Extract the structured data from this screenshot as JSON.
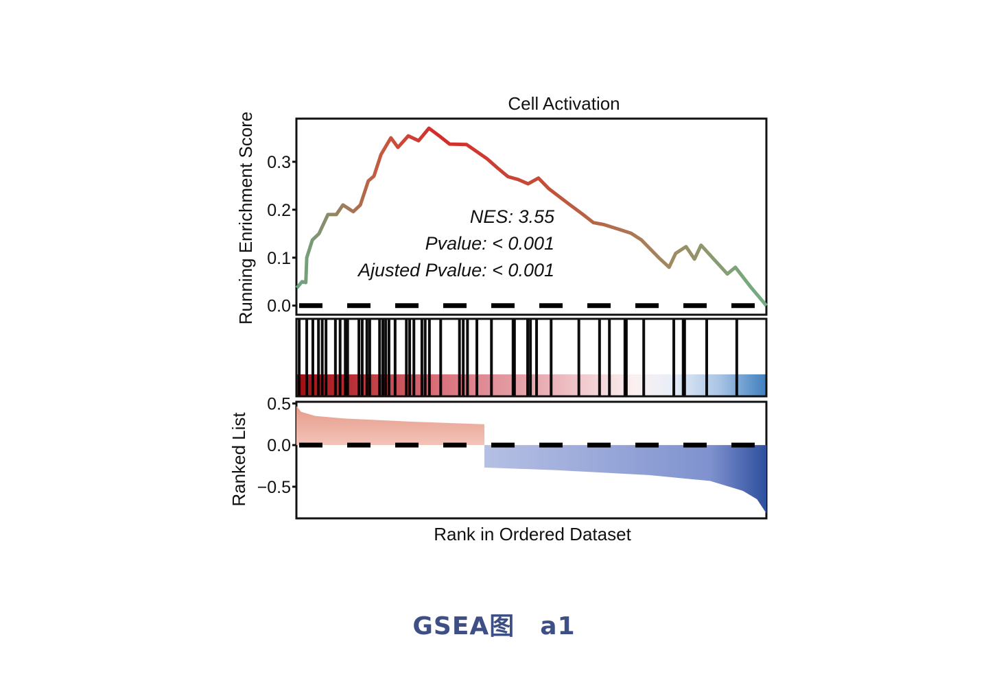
{
  "chart_data": {
    "type": "line",
    "title": "Cell Activation",
    "xlabel": "Rank in Ordered Dataset",
    "ylabel_top": "Running Enrichment Score",
    "ylabel_bottom": "Ranked List",
    "top_yticks": [
      "0.0",
      "0.1",
      "0.2",
      "0.3"
    ],
    "top_ytick_values": [
      0.0,
      0.1,
      0.2,
      0.3
    ],
    "top_ylim": [
      -0.019,
      0.39
    ],
    "bottom_yticks": [
      "0.5",
      "0.0",
      "−0.5"
    ],
    "bottom_ytick_values": [
      0.5,
      0.0,
      -0.5
    ],
    "bottom_ylim": [
      -0.88,
      0.52
    ],
    "xlim": [
      0,
      100
    ],
    "annotations": [
      "NES: 3.55",
      "Pvalue: < 0.001",
      "Ajusted Pvalue: < 0.001"
    ],
    "running_es": {
      "x": [
        0.1,
        1.2,
        2.0,
        2.2,
        3.4,
        4.8,
        6.7,
        8.5,
        9.9,
        12.1,
        13.6,
        15.3,
        16.5,
        18.0,
        20.1,
        21.6,
        23.8,
        26.0,
        28.2,
        30.4,
        32.6,
        36.2,
        37.7,
        40.6,
        42.8,
        45.0,
        47.2,
        49.3,
        51.5,
        53.7,
        58.1,
        61.0,
        63.2,
        65.4,
        68.3,
        71.2,
        73.4,
        77.1,
        79.3,
        80.7,
        82.9,
        84.7,
        86.1,
        88.8,
        91.7,
        93.4,
        96.8,
        100
      ],
      "y": [
        0.037,
        0.05,
        0.048,
        0.1,
        0.137,
        0.15,
        0.19,
        0.19,
        0.21,
        0.196,
        0.21,
        0.26,
        0.27,
        0.315,
        0.35,
        0.33,
        0.354,
        0.344,
        0.37,
        0.354,
        0.337,
        0.336,
        0.326,
        0.306,
        0.287,
        0.269,
        0.263,
        0.254,
        0.266,
        0.244,
        0.211,
        0.19,
        0.173,
        0.169,
        0.16,
        0.151,
        0.137,
        0.1,
        0.08,
        0.109,
        0.123,
        0.097,
        0.126,
        0.097,
        0.066,
        0.08,
        0.037,
        0.0
      ]
    },
    "hits": [
      0.6,
      2.2,
      3.5,
      4.7,
      5.5,
      6.3,
      8.3,
      9.3,
      10.4,
      10.9,
      13.3,
      14.0,
      15.0,
      15.6,
      17.7,
      18.4,
      19.0,
      19.7,
      21.0,
      23.4,
      24.1,
      25.0,
      26.7,
      27.4,
      28.3,
      30.7,
      34.7,
      35.5,
      36.4,
      38.4,
      41.5,
      46.1,
      46.4,
      49.2,
      49.8,
      51.1,
      54.2,
      60.1,
      64.5,
      66.6,
      69.9,
      70.2,
      73.9,
      80.3,
      82.3,
      82.6,
      87.3,
      93.7
    ],
    "ranked_list": {
      "x": [
        0,
        1,
        4,
        10,
        25,
        40,
        40,
        55,
        75,
        88,
        95,
        98,
        100
      ],
      "y": [
        0.47,
        0.4,
        0.35,
        0.32,
        0.28,
        0.25,
        -0.27,
        -0.3,
        -0.36,
        -0.43,
        -0.55,
        -0.65,
        -0.82
      ]
    },
    "grid": false,
    "colors": {
      "positive": "#e8a090",
      "negative": "#8fa0d4",
      "es_start": "#6aa882",
      "es_peak": "#d62a2a",
      "es_end": "#6fae86",
      "heat_high": "#9e0f14",
      "heat_low": "#3f7fbf"
    }
  },
  "caption": "GSEA图　a1"
}
